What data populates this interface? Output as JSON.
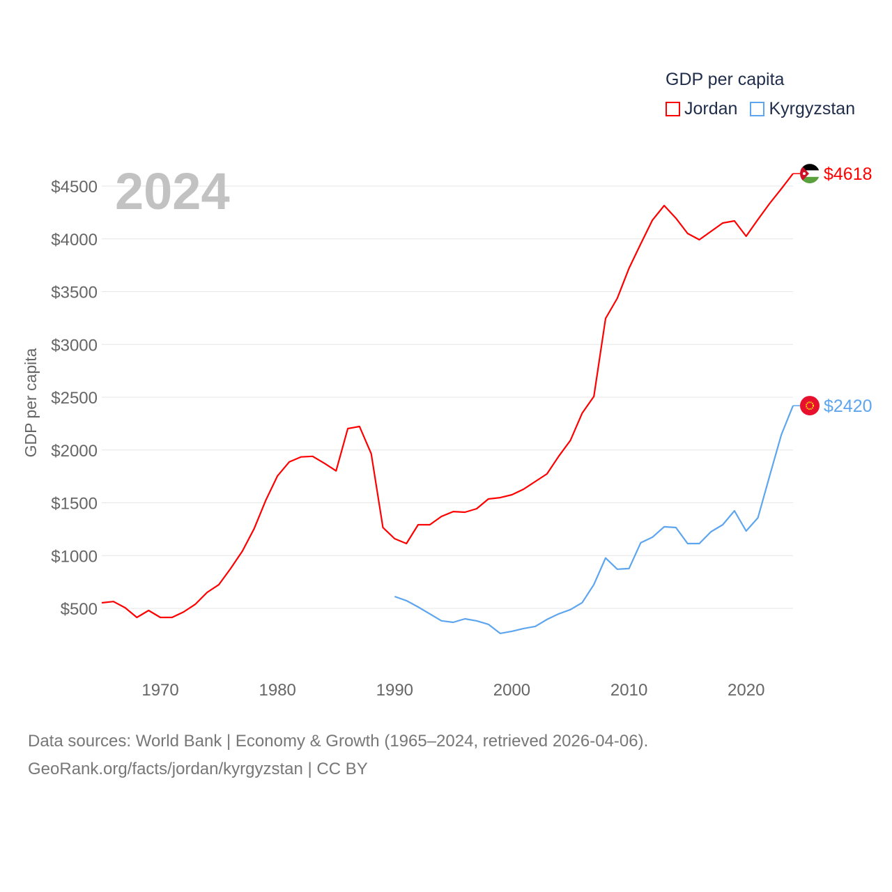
{
  "chart_data": {
    "type": "line",
    "title": "GDP per capita",
    "ylabel": "GDP per capita",
    "xlabel": "",
    "year_label": "2024",
    "xlim": [
      1965,
      2024
    ],
    "ylim": [
      0,
      4700
    ],
    "x_ticks": [
      1970,
      1980,
      1990,
      2000,
      2010,
      2020
    ],
    "x_tick_labels": [
      "1970",
      "1980",
      "1990",
      "2000",
      "2010",
      "2020"
    ],
    "y_ticks": [
      500,
      1000,
      1500,
      2000,
      2500,
      3000,
      3500,
      4000,
      4500
    ],
    "y_tick_labels": [
      "$500",
      "$1000",
      "$1500",
      "$2000",
      "$2500",
      "$3000",
      "$3500",
      "$4000",
      "$4500"
    ],
    "grid": true,
    "legend_position": "top-right",
    "series": [
      {
        "name": "Jordan",
        "color": "#ff0000",
        "end_label": "$4618",
        "start_year": 1965,
        "values": [
          553,
          565,
          506,
          414,
          480,
          414,
          414,
          467,
          540,
          652,
          725,
          877,
          1042,
          1254,
          1524,
          1755,
          1887,
          1934,
          1940,
          1874,
          1802,
          2203,
          2223,
          1965,
          1266,
          1160,
          1114,
          1292,
          1292,
          1371,
          1417,
          1411,
          1444,
          1536,
          1549,
          1576,
          1629,
          1701,
          1774,
          1940,
          2091,
          2349,
          2507,
          3246,
          3437,
          3721,
          3952,
          4177,
          4315,
          4196,
          4051,
          3992,
          4071,
          4150,
          4170,
          4025,
          4183,
          4335,
          4474,
          4618
        ]
      },
      {
        "name": "Kyrgyzstan",
        "color": "#5da5ee",
        "end_label": "$2420",
        "start_year": 1990,
        "values": [
          612,
          573,
          513,
          448,
          382,
          368,
          401,
          382,
          349,
          263,
          283,
          309,
          329,
          395,
          448,
          488,
          554,
          726,
          977,
          871,
          877,
          1121,
          1174,
          1273,
          1266,
          1114,
          1114,
          1226,
          1292,
          1424,
          1233,
          1358,
          1755,
          2144,
          2420
        ]
      }
    ]
  },
  "source_line1": "Data sources: World Bank | Economy & Growth (1965–2024, retrieved 2026-04-06).",
  "source_line2": "GeoRank.org/facts/jordan/kyrgyzstan | CC BY"
}
